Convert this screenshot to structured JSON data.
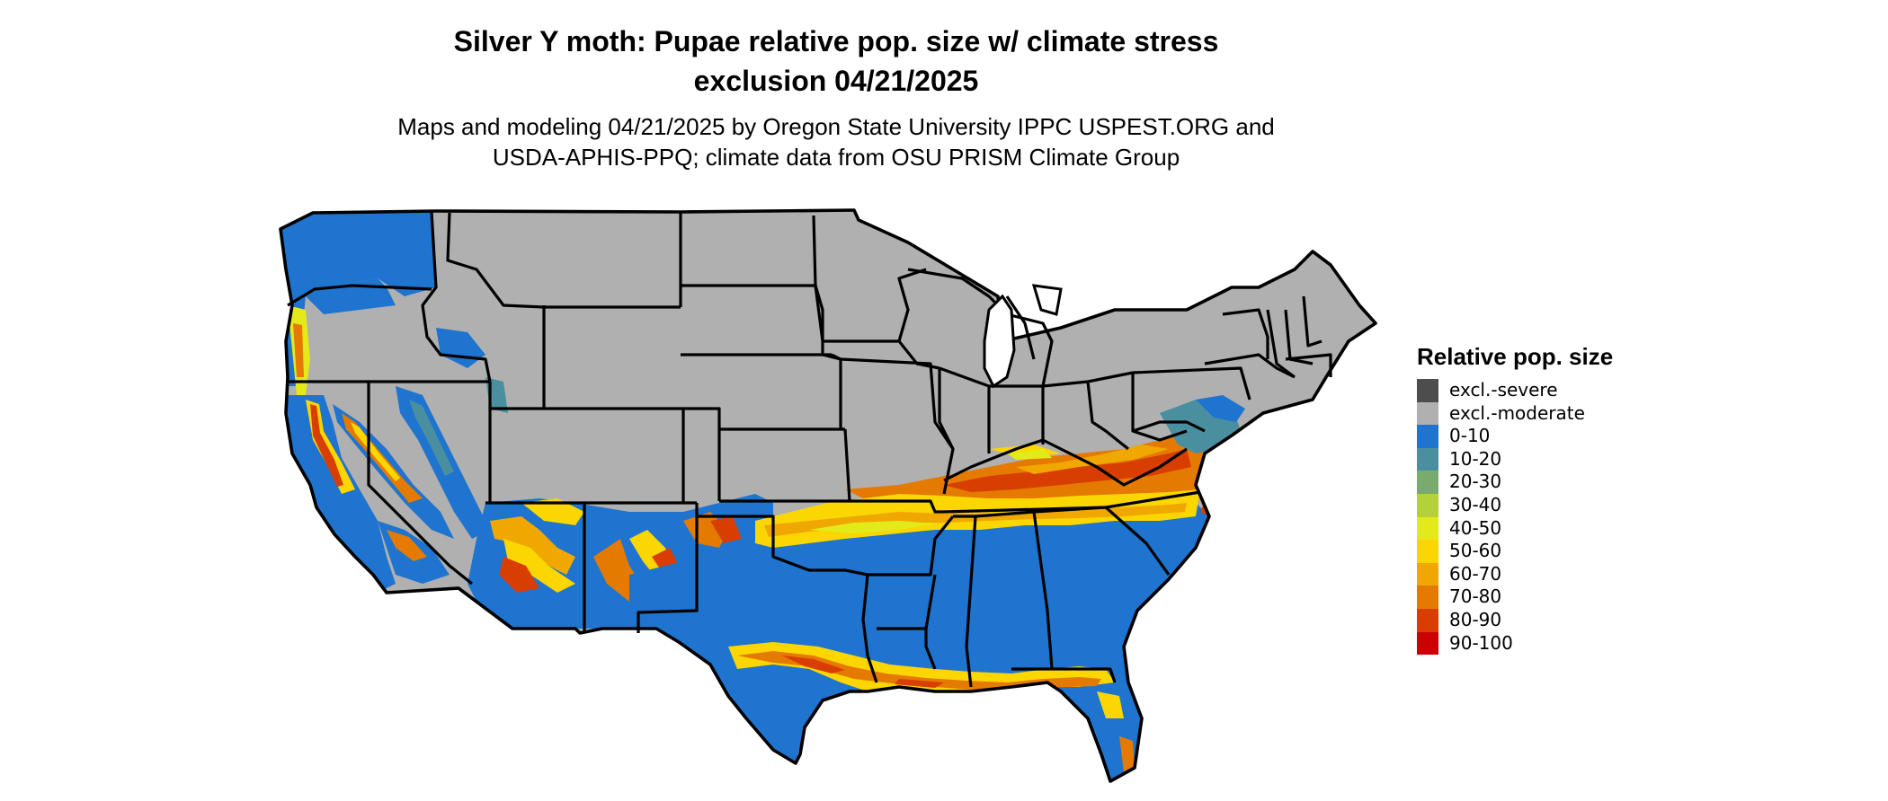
{
  "title_line1": "Silver Y moth: Pupae relative pop. size w/ climate stress",
  "title_line2": "exclusion 04/21/2025",
  "subtitle_line1": "Maps and modeling 04/21/2025 by Oregon State University IPPC USPEST.ORG and",
  "subtitle_line2": "USDA-APHIS-PPQ; climate data from OSU PRISM Climate Group",
  "legend": {
    "title": "Relative pop. size",
    "items": [
      {
        "label": "excl.-severe",
        "color": "#4d4d4d"
      },
      {
        "label": "excl.-moderate",
        "color": "#b0b0b0"
      },
      {
        "label": "0-10",
        "color": "#1e74cf"
      },
      {
        "label": "10-20",
        "color": "#4a8fa0"
      },
      {
        "label": "20-30",
        "color": "#7aab6e"
      },
      {
        "label": "30-40",
        "color": "#b4d13c"
      },
      {
        "label": "40-50",
        "color": "#e3ea1a"
      },
      {
        "label": "50-60",
        "color": "#fbd600"
      },
      {
        "label": "60-70",
        "color": "#f0a800"
      },
      {
        "label": "70-80",
        "color": "#e57a00"
      },
      {
        "label": "80-90",
        "color": "#d83e00"
      },
      {
        "label": "90-100",
        "color": "#cc0000"
      }
    ]
  },
  "map": {
    "colors": {
      "water_none": "#ffffff",
      "border": "#000000"
    }
  }
}
